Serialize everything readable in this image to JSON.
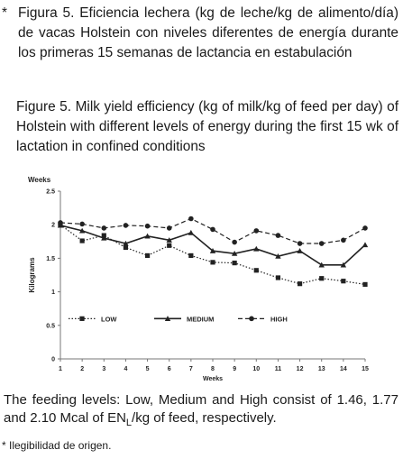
{
  "caption_es": {
    "marker": "*",
    "text": "Figura 5. Eficiencia lechera (kg de leche/kg de alimento/día) de vacas Holstein con niveles diferentes de energía durante los primeras 15 semanas de lactancia en estabulación"
  },
  "caption_en": {
    "text": "Figure 5. Milk yield efficiency (kg of milk/kg of feed per day) of Holstein with different levels of energy during the first 15 wk of lactation in confined conditions"
  },
  "footnote": {
    "text_before": "The feeding levels: Low, Medium and High consist of 1.46, 1.77 and 2.10 Mcal of EN",
    "subscript": "L",
    "text_after": "/kg of feed, respectively."
  },
  "note": {
    "text": "* Ilegibilidad de origen."
  },
  "chart_data": {
    "type": "line",
    "title": "Weeks",
    "xlabel": "Weeks",
    "ylabel": "Kilograms",
    "x": [
      1,
      2,
      3,
      4,
      5,
      6,
      7,
      8,
      9,
      10,
      11,
      12,
      13,
      14,
      15
    ],
    "ylim": [
      0,
      2.5
    ],
    "yticks": [
      "0",
      "0.5",
      "1",
      "1.5",
      "2",
      "2.5"
    ],
    "grid": false,
    "legend_position": "bottom-center",
    "series": [
      {
        "name": "LOW",
        "marker": "square",
        "line": "dotted",
        "color": "#222222",
        "values": [
          2.0,
          1.76,
          1.84,
          1.66,
          1.54,
          1.69,
          1.54,
          1.44,
          1.43,
          1.32,
          1.21,
          1.12,
          1.2,
          1.16,
          1.11
        ]
      },
      {
        "name": "MEDIUM",
        "marker": "triangle",
        "line": "solid",
        "color": "#222222",
        "values": [
          1.99,
          1.91,
          1.8,
          1.72,
          1.83,
          1.77,
          1.88,
          1.61,
          1.57,
          1.64,
          1.53,
          1.61,
          1.4,
          1.4,
          1.7
        ]
      },
      {
        "name": "HIGH",
        "marker": "circle",
        "line": "dashed",
        "color": "#222222",
        "values": [
          2.03,
          2.01,
          1.95,
          1.99,
          1.98,
          1.95,
          2.09,
          1.93,
          1.74,
          1.91,
          1.84,
          1.72,
          1.72,
          1.77,
          1.95
        ]
      }
    ]
  }
}
